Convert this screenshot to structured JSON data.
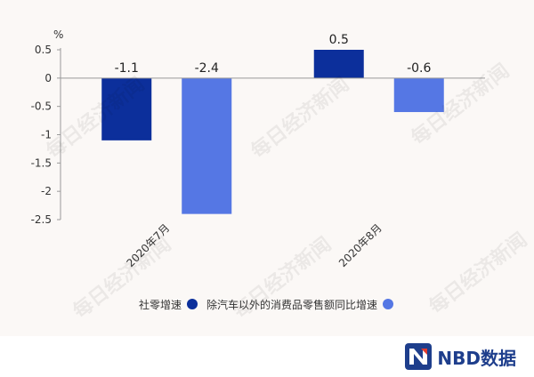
{
  "chart_data": {
    "type": "bar",
    "categories": [
      "2020年7月",
      "2020年8月"
    ],
    "series": [
      {
        "name": "社零增速",
        "values": [
          -1.1,
          0.5
        ],
        "color": "#0c2f9b"
      },
      {
        "name": "除汽车以外的消费品零售额同比增速",
        "values": [
          -2.4,
          -0.6
        ],
        "color": "#5577e4"
      }
    ],
    "ylabel": "%",
    "ylim": [
      -2.5,
      0.5
    ],
    "yticks": [
      "0.5",
      "0",
      "-0.5",
      "-1",
      "-1.5",
      "-2",
      "-2.5"
    ],
    "data_labels": [
      [
        "-1.1",
        "0.5"
      ],
      [
        "-2.4",
        "-0.6"
      ]
    ],
    "legend": "bottom",
    "grid": false
  },
  "watermark": "每日经济新闻",
  "brand": {
    "name": "NBD数据",
    "color": "#1e3e8c",
    "accent": "#e23b2e"
  }
}
